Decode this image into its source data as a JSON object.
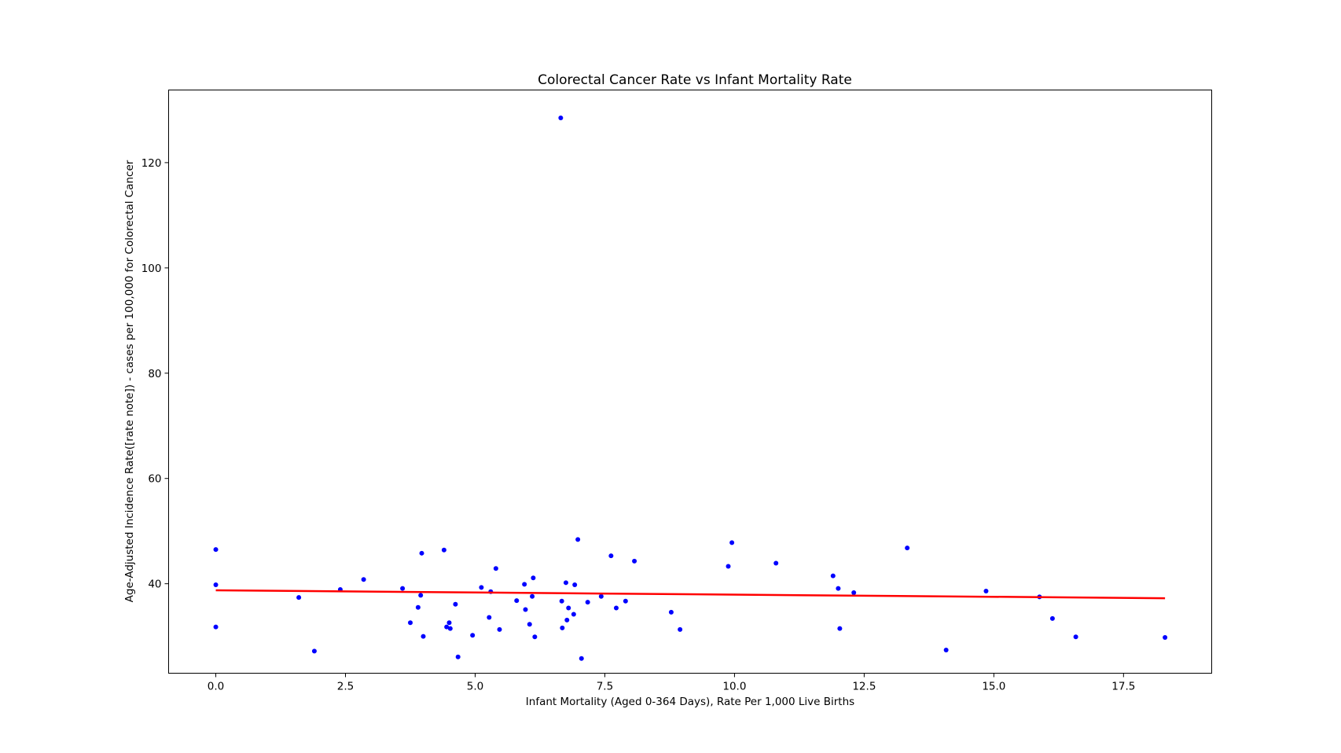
{
  "chart_data": {
    "type": "scatter",
    "title": "Colorectal Cancer Rate vs Infant Mortality Rate",
    "xlabel": "Infant Mortality (Aged 0-364 Days), Rate Per 1,000 Live Births",
    "ylabel": "Age-Adjusted Incidence Rate([rate note]) - cases per 100,000 for Colorectal Cancer",
    "xlim": [
      -0.91,
      19.2
    ],
    "ylim": [
      23.0,
      133.8
    ],
    "xticks": [
      0.0,
      2.5,
      5.0,
      7.5,
      10.0,
      12.5,
      15.0,
      17.5
    ],
    "xtick_labels": [
      "0.0",
      "2.5",
      "5.0",
      "7.5",
      "10.0",
      "12.5",
      "15.0",
      "17.5"
    ],
    "yticks": [
      40,
      60,
      80,
      100,
      120
    ],
    "ytick_labels": [
      "40",
      "60",
      "80",
      "100",
      "120"
    ],
    "grid": false,
    "point_color": "#0000ff",
    "line_color": "#ff0000",
    "series": [
      {
        "type": "scatter",
        "x": [
          0.0,
          0.0,
          0.0,
          1.6,
          1.9,
          2.4,
          2.85,
          3.6,
          3.75,
          3.9,
          3.95,
          3.97,
          4.0,
          4.4,
          4.45,
          4.5,
          4.52,
          4.62,
          4.67,
          4.95,
          5.12,
          5.27,
          5.3,
          5.4,
          5.47,
          5.8,
          5.95,
          5.97,
          6.05,
          6.1,
          6.12,
          6.15,
          6.65,
          6.67,
          6.68,
          6.75,
          6.77,
          6.8,
          6.9,
          6.92,
          6.98,
          7.05,
          7.17,
          7.43,
          7.62,
          7.72,
          7.9,
          8.07,
          8.78,
          8.95,
          9.88,
          9.95,
          10.8,
          11.9,
          12.0,
          12.03,
          12.3,
          13.33,
          14.08,
          14.85,
          15.88,
          16.13,
          16.58,
          18.3
        ],
        "y": [
          46.5,
          39.8,
          31.8,
          37.4,
          27.2,
          38.9,
          40.8,
          39.1,
          32.6,
          35.5,
          37.8,
          45.8,
          30.0,
          46.4,
          31.8,
          32.6,
          31.5,
          36.1,
          26.1,
          30.2,
          39.3,
          33.6,
          38.5,
          42.9,
          31.3,
          36.8,
          39.9,
          35.1,
          32.3,
          37.6,
          41.1,
          29.9,
          128.5,
          36.7,
          31.6,
          40.2,
          33.1,
          35.4,
          34.2,
          39.8,
          48.4,
          25.8,
          36.5,
          37.6,
          45.3,
          35.4,
          36.7,
          44.3,
          34.6,
          31.3,
          43.3,
          47.8,
          43.9,
          41.5,
          39.1,
          31.5,
          38.3,
          46.8,
          27.4,
          38.6,
          37.5,
          33.4,
          29.9,
          29.8
        ]
      },
      {
        "type": "line",
        "x": [
          0.0,
          18.3
        ],
        "y": [
          38.75,
          37.25
        ]
      }
    ]
  }
}
